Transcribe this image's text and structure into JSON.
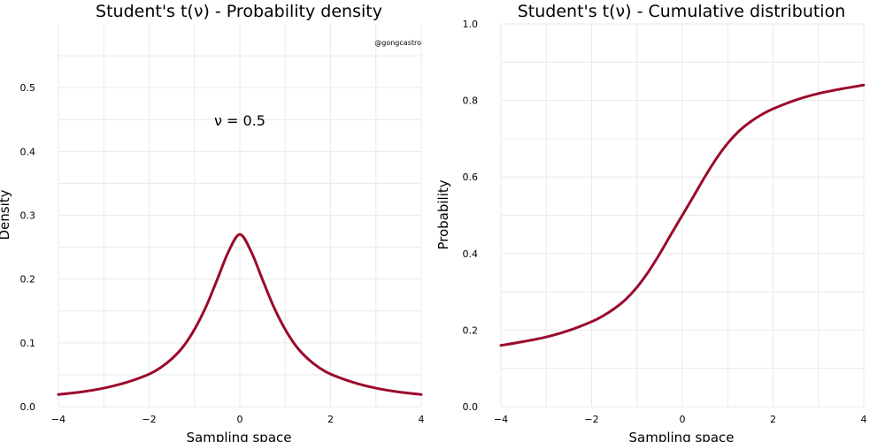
{
  "credit": "@gongcastro",
  "colors": {
    "curve": "#9b0a2c",
    "grid": "#e9e9e9"
  },
  "chart_data": [
    {
      "type": "line",
      "title": "Student's t(ν) - Probability density",
      "xlabel": "Sampling space",
      "ylabel": "Density",
      "annotation": "ν = 0.5",
      "xlim": [
        -4,
        4
      ],
      "ylim": [
        0,
        0.6
      ],
      "xticks": [
        -4,
        -2,
        0,
        2,
        4
      ],
      "xtick_labels": [
        "−4",
        "−2",
        "0",
        "2",
        "4"
      ],
      "yticks": [
        0,
        0.1,
        0.2,
        0.3,
        0.4,
        0.5
      ],
      "ytick_labels": [
        "0.0",
        "0.1",
        "0.2",
        "0.3",
        "0.4",
        "0.5"
      ],
      "grid": true,
      "series": [
        {
          "x": [
            -4,
            -3.5,
            -3,
            -2.5,
            -2,
            -1.75,
            -1.5,
            -1.25,
            -1,
            -0.75,
            -0.5,
            -0.25,
            0,
            0.25,
            0.5,
            0.75,
            1,
            1.25,
            1.5,
            1.75,
            2,
            2.5,
            3,
            3.5,
            4
          ],
          "y": [
            0.019,
            0.023,
            0.029,
            0.038,
            0.051,
            0.061,
            0.075,
            0.094,
            0.121,
            0.156,
            0.199,
            0.243,
            0.27,
            0.243,
            0.199,
            0.156,
            0.121,
            0.094,
            0.075,
            0.061,
            0.051,
            0.038,
            0.029,
            0.023,
            0.019
          ]
        }
      ]
    },
    {
      "type": "line",
      "title": "Student's t(ν) - Cumulative distribution",
      "xlabel": "Sampling space",
      "ylabel": "Probability",
      "xlim": [
        -4,
        4
      ],
      "ylim": [
        0,
        1.0
      ],
      "xticks": [
        -4,
        -2,
        0,
        2,
        4
      ],
      "xtick_labels": [
        "−4",
        "−2",
        "0",
        "2",
        "4"
      ],
      "yticks": [
        0,
        0.2,
        0.4,
        0.6,
        0.8,
        1.0
      ],
      "ytick_labels": [
        "0.0",
        "0.2",
        "0.4",
        "0.6",
        "0.8",
        "1.0"
      ],
      "grid": true,
      "series": [
        {
          "x": [
            -4,
            -3.5,
            -3,
            -2.5,
            -2,
            -1.75,
            -1.5,
            -1.25,
            -1,
            -0.75,
            -0.5,
            -0.25,
            0,
            0.25,
            0.5,
            0.75,
            1,
            1.25,
            1.5,
            1.75,
            2,
            2.5,
            3,
            3.5,
            4
          ],
          "y": [
            0.16,
            0.17,
            0.182,
            0.199,
            0.222,
            0.237,
            0.256,
            0.28,
            0.312,
            0.352,
            0.399,
            0.45,
            0.5,
            0.55,
            0.601,
            0.648,
            0.688,
            0.72,
            0.744,
            0.763,
            0.778,
            0.801,
            0.818,
            0.83,
            0.84
          ]
        }
      ]
    }
  ]
}
